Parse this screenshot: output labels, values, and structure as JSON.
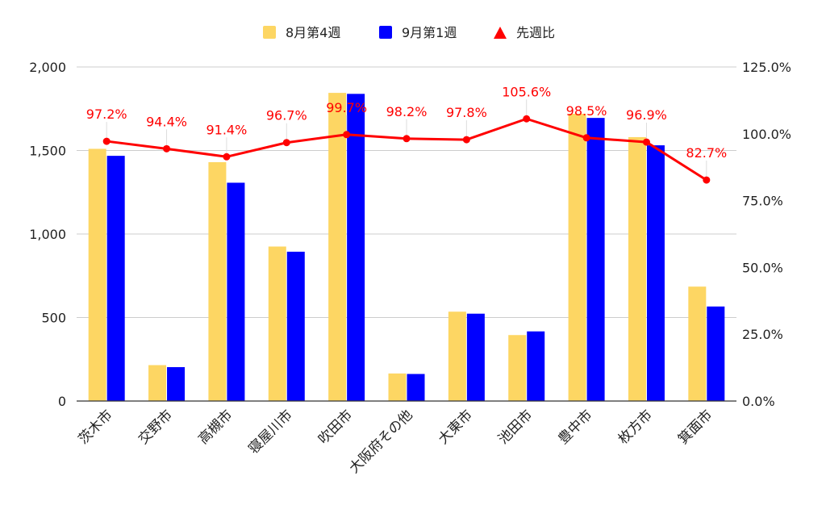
{
  "chart_data": {
    "type": "bar",
    "categories": [
      "茨木市",
      "交野市",
      "高槻市",
      "寝屋川市",
      "吹田市",
      "大阪府その他",
      "大東市",
      "池田市",
      "豊中市",
      "枚方市",
      "箕面市"
    ],
    "series": [
      {
        "name": "8月第4週",
        "kind": "bar",
        "axis": "left",
        "color": "#FDD663",
        "values": [
          1510,
          215,
          1430,
          925,
          1845,
          165,
          535,
          395,
          1720,
          1580,
          685
        ]
      },
      {
        "name": "9月第1週",
        "kind": "bar",
        "axis": "left",
        "color": "#0000FF",
        "values": [
          1468,
          203,
          1307,
          894,
          1839,
          162,
          523,
          417,
          1695,
          1531,
          566
        ]
      },
      {
        "name": "先週比",
        "kind": "line",
        "axis": "right",
        "color": "#FF0000",
        "values": [
          97.2,
          94.4,
          91.4,
          96.7,
          99.7,
          98.2,
          97.8,
          105.6,
          98.5,
          96.9,
          82.7
        ],
        "labels": [
          "97.2%",
          "94.4%",
          "91.4%",
          "96.7%",
          "99.7%",
          "98.2%",
          "97.8%",
          "105.6%",
          "98.5%",
          "96.9%",
          "82.7%"
        ]
      }
    ],
    "left_axis": {
      "min": 0,
      "max": 2000,
      "ticks": [
        "0",
        "500",
        "1,000",
        "1,500",
        "2,000"
      ]
    },
    "right_axis": {
      "min": 0,
      "max": 125,
      "ticks": [
        "0.0%",
        "25.0%",
        "50.0%",
        "75.0%",
        "100.0%",
        "125.0%"
      ]
    },
    "legend_position": "top",
    "grid": true
  }
}
